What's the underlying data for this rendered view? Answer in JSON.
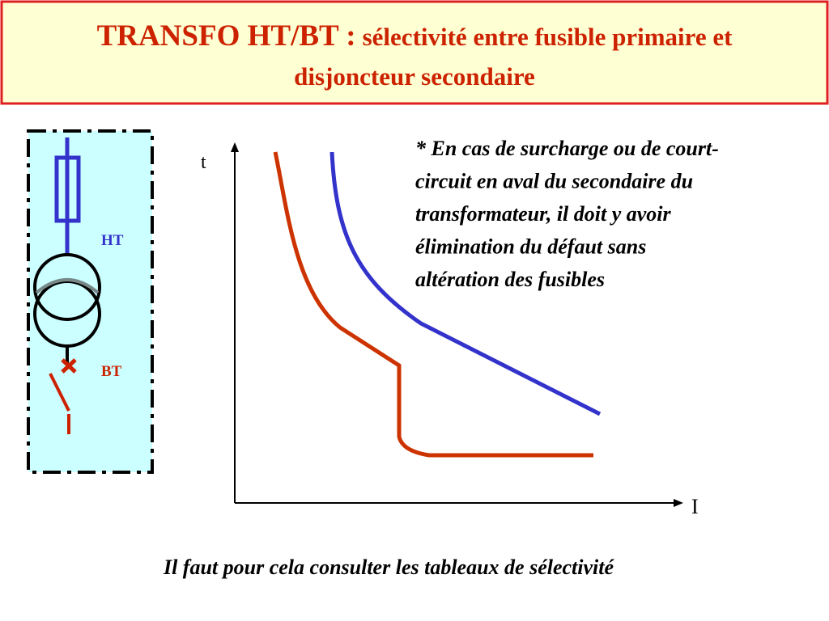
{
  "title": {
    "main": "TRANSFO HT/BT :",
    "sub_line1": "sélectivité entre fusible primaire et",
    "sub_line2": "disjoncteur secondaire"
  },
  "diagram": {
    "ht_label": "HT",
    "bt_label": "BT"
  },
  "axes": {
    "y_label": "t",
    "x_label": "I"
  },
  "note": {
    "lines": [
      "* En cas de surcharge ou de court-",
      "circuit en aval du secondaire du",
      "transformateur, il doit y avoir",
      "élimination du défaut sans",
      "altération des fusibles"
    ]
  },
  "footer": "Il faut pour cela  consulter les tableaux de sélectivité"
}
